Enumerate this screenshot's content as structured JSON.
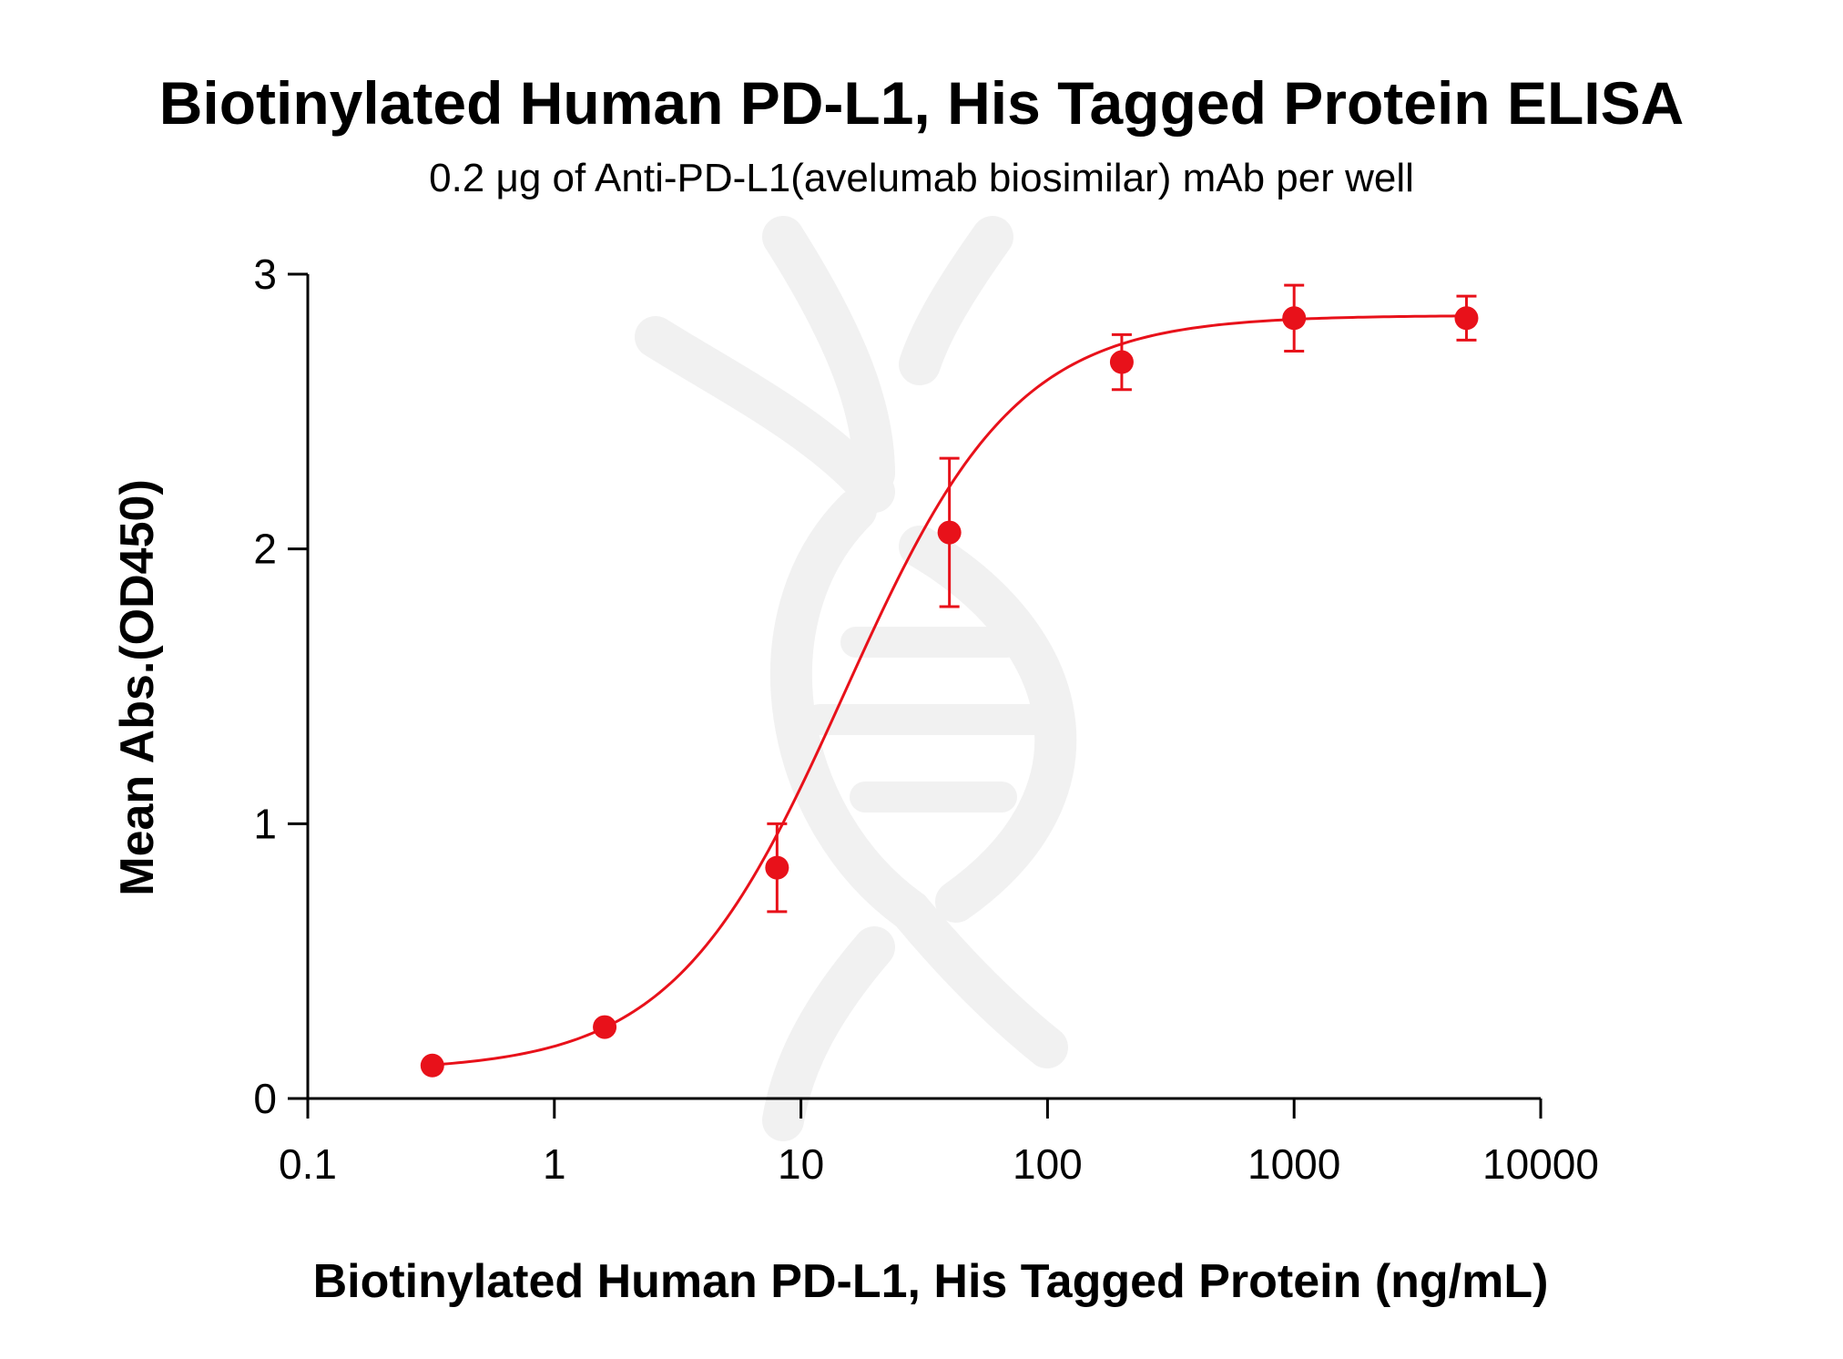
{
  "chart_data": {
    "type": "scatter",
    "title": "Biotinylated Human PD-L1, His Tagged Protein ELISA",
    "subtitle": "0.2 μg of Anti-PD-L1(avelumab biosimilar) mAb per well",
    "xlabel": "Biotinylated Human PD-L1, His Tagged Protein (ng/mL)",
    "ylabel": "Mean Abs.(OD450)",
    "xscale": "log",
    "xlim": [
      0.1,
      10000
    ],
    "ylim": [
      0,
      3
    ],
    "xticks": [
      0.1,
      1,
      10,
      100,
      1000,
      10000
    ],
    "xtick_labels": [
      "0.1",
      "1",
      "10",
      "100",
      "1000",
      "10000"
    ],
    "yticks": [
      0,
      1,
      2,
      3
    ],
    "ytick_labels": [
      "0",
      "1",
      "2",
      "3"
    ],
    "grid": false,
    "color": "#e8111a",
    "series": [
      {
        "x": [
          0.32,
          1.6,
          8,
          40,
          200,
          1000,
          5000
        ],
        "y": [
          0.12,
          0.26,
          0.84,
          2.06,
          2.68,
          2.84,
          2.84
        ],
        "error": [
          0,
          0,
          0.16,
          0.27,
          0.1,
          0.12,
          0.08
        ],
        "fit": "4PL",
        "fit_params": {
          "bottom": 0.1,
          "top": 2.85,
          "ec50": 15,
          "hill": 1.25
        }
      }
    ]
  }
}
